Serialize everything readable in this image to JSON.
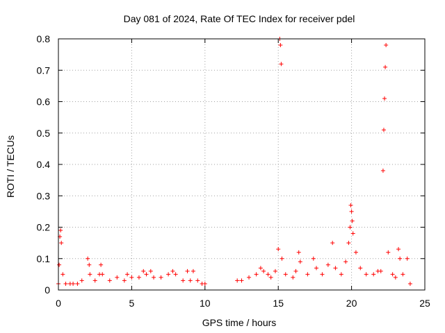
{
  "chart_data": {
    "type": "scatter",
    "title": "Day 081 of 2024, Rate Of TEC Index for receiver pdel",
    "xlabel": "GPS time / hours",
    "ylabel": "ROTI / TECUs",
    "xlim": [
      0,
      25
    ],
    "ylim": [
      0,
      0.8
    ],
    "xticks": [
      0,
      5,
      10,
      15,
      20,
      25
    ],
    "yticks": [
      0,
      0.1,
      0.2,
      0.3,
      0.4,
      0.5,
      0.6,
      0.7,
      0.8
    ],
    "xtick_labels": [
      "0",
      "5",
      "10",
      "15",
      "20",
      "25"
    ],
    "ytick_labels": [
      "0",
      "0.1",
      "0.2",
      "0.3",
      "0.4",
      "0.5",
      "0.6",
      "0.7",
      "0.8"
    ],
    "grid": true,
    "marker": "+",
    "color": "#ff0000",
    "series": [
      {
        "x": [
          0.0,
          0.05,
          0.1,
          0.15,
          0.2,
          0.3,
          0.5,
          0.8,
          1.0,
          1.3,
          1.6,
          2.0,
          2.1,
          2.15,
          2.5,
          2.8,
          2.9,
          3.0,
          3.5,
          4.0,
          4.5,
          4.7,
          5.0,
          5.5,
          5.8,
          6.0,
          6.3,
          6.5,
          7.0,
          7.5,
          7.8,
          8.0,
          8.5,
          8.8,
          9.0,
          9.2,
          9.5,
          9.8,
          10.0,
          12.2,
          12.5,
          13.0,
          13.5,
          13.8,
          14.0,
          14.3,
          14.5,
          14.8,
          15.0,
          15.1,
          15.15,
          15.2,
          15.25,
          15.5,
          16.0,
          16.2,
          16.4,
          16.5,
          17.0,
          17.4,
          17.6,
          18.0,
          18.4,
          18.7,
          18.9,
          19.3,
          19.6,
          19.8,
          19.9,
          19.95,
          20.0,
          20.05,
          20.1,
          20.3,
          20.6,
          21.0,
          21.5,
          21.8,
          22.0,
          22.15,
          22.2,
          22.25,
          22.3,
          22.35,
          22.5,
          22.8,
          23.0,
          23.2,
          23.3,
          23.5,
          23.8,
          24.0
        ],
        "y": [
          0.02,
          0.08,
          0.17,
          0.19,
          0.15,
          0.05,
          0.02,
          0.02,
          0.02,
          0.02,
          0.03,
          0.1,
          0.08,
          0.05,
          0.03,
          0.05,
          0.08,
          0.05,
          0.03,
          0.04,
          0.03,
          0.05,
          0.04,
          0.04,
          0.06,
          0.05,
          0.06,
          0.04,
          0.04,
          0.05,
          0.06,
          0.05,
          0.03,
          0.06,
          0.03,
          0.06,
          0.03,
          0.02,
          0.02,
          0.03,
          0.03,
          0.04,
          0.05,
          0.07,
          0.06,
          0.05,
          0.04,
          0.06,
          0.13,
          0.8,
          0.78,
          0.72,
          0.1,
          0.05,
          0.04,
          0.06,
          0.12,
          0.09,
          0.05,
          0.1,
          0.07,
          0.05,
          0.08,
          0.15,
          0.07,
          0.05,
          0.09,
          0.15,
          0.2,
          0.27,
          0.25,
          0.22,
          0.18,
          0.12,
          0.07,
          0.05,
          0.05,
          0.06,
          0.06,
          0.38,
          0.51,
          0.61,
          0.71,
          0.78,
          0.12,
          0.05,
          0.04,
          0.13,
          0.1,
          0.05,
          0.1,
          0.02
        ]
      }
    ]
  }
}
